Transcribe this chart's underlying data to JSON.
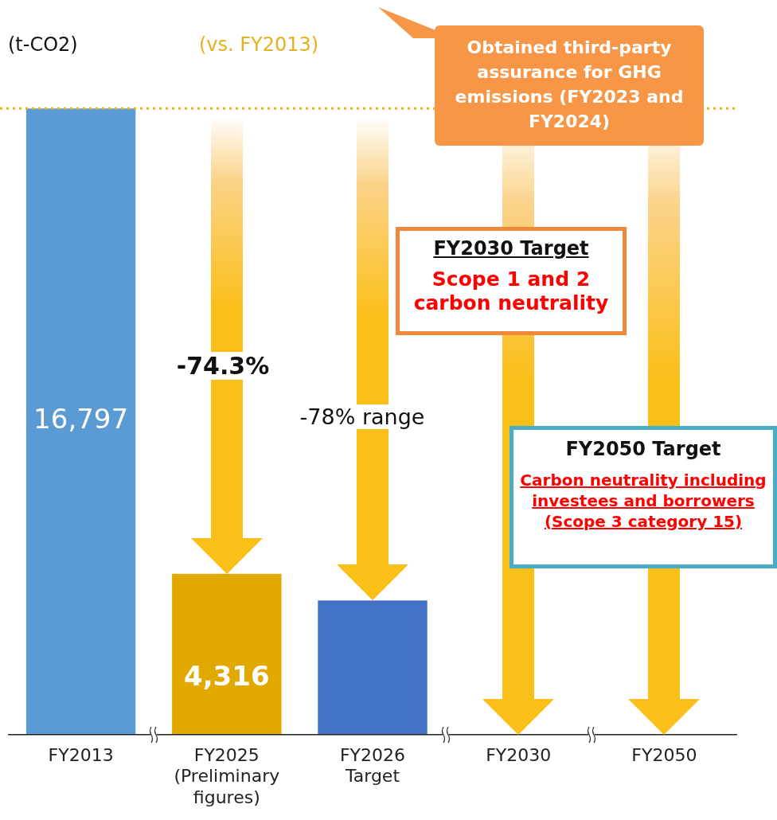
{
  "chart_data": {
    "type": "bar",
    "ylabel": "(t-CO2)",
    "categories": [
      "FY2013",
      "FY2025 (Preliminary figures)",
      "FY2026 Target",
      "FY2030",
      "FY2050"
    ],
    "values": [
      16797,
      4316,
      3600,
      0,
      0
    ],
    "colors": [
      "#5b9bd5",
      "#e1a800",
      "#4472c4",
      "#4472c4",
      "#4472c4"
    ],
    "value_labels": [
      "16,797",
      "4,316",
      null,
      null,
      null
    ],
    "ref_lines": [
      {
        "axis": "y",
        "value": 16797,
        "color": "#f0b400",
        "line_style": "dotted"
      }
    ],
    "annotations": [
      "(vs. FY2013)",
      "-74.3%",
      "-78% range",
      "Obtained third-party assurance for GHG emissions (FY2023 and FY2024)",
      "FY2030 Target",
      "Scope 1 and 2 carbon neutrality",
      "FY2050 Target",
      "Carbon neutrality including investees and borrowers",
      "(Scope 3 category 15)"
    ],
    "grid": false,
    "legend": false
  }
}
